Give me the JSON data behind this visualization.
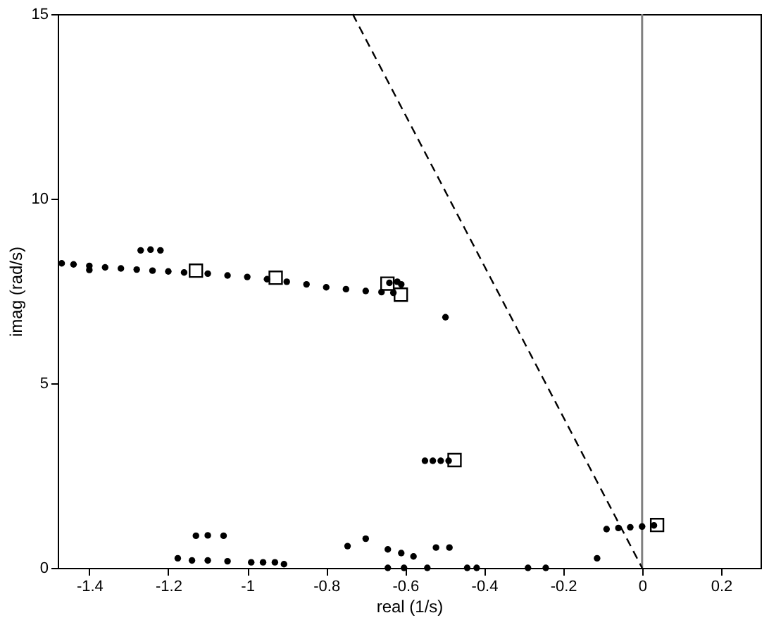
{
  "chart_data": {
    "type": "scatter",
    "xlabel": "real (1/s)",
    "ylabel": "imag (rad/s)",
    "xlim": [
      -1.48,
      0.3
    ],
    "ylim": [
      0,
      15
    ],
    "xticks": [
      -1.4,
      -1.2,
      -1,
      -0.8,
      -0.6,
      -0.4,
      -0.2,
      0,
      0.2
    ],
    "yticks": [
      0,
      5,
      10,
      15
    ],
    "grid": false,
    "ref_lines": [
      {
        "axis": "x",
        "value": 0,
        "color": "#808080"
      }
    ],
    "series": [
      {
        "marker": "circle",
        "color": "#000000",
        "x": [
          -1.47,
          -1.44,
          -1.4,
          -1.36,
          -1.32,
          -1.28,
          -1.24,
          -1.2,
          -1.16,
          -1.1,
          -1.05,
          -1.0,
          -0.95,
          -0.9,
          -0.85,
          -0.8,
          -0.75,
          -0.7,
          -0.66,
          -0.63,
          -1.4,
          -1.27,
          -1.245,
          -1.22,
          -0.64,
          -0.62,
          -0.61,
          -0.498,
          -0.55,
          -0.53,
          -0.51,
          -0.49,
          -0.09,
          -0.06,
          -0.03,
          0.0,
          0.03,
          -0.114,
          -0.244,
          -0.289,
          -0.419,
          -0.443,
          -0.544,
          -0.603,
          -0.644,
          -0.907,
          -0.93,
          -0.96,
          -0.99,
          -1.05,
          -1.1,
          -1.14,
          -1.176,
          -1.13,
          -1.1,
          -1.06,
          -0.746,
          -0.7,
          -0.644,
          -0.61,
          -0.579,
          -0.522,
          -0.488
        ],
        "values": [
          8.25,
          8.22,
          8.18,
          8.14,
          8.11,
          8.08,
          8.05,
          8.03,
          8.0,
          7.97,
          7.92,
          7.88,
          7.82,
          7.75,
          7.68,
          7.6,
          7.55,
          7.5,
          7.47,
          7.45,
          8.07,
          8.6,
          8.62,
          8.6,
          7.72,
          7.75,
          7.68,
          6.79,
          2.9,
          2.9,
          2.9,
          2.9,
          1.05,
          1.08,
          1.1,
          1.12,
          1.15,
          0.26,
          0.0,
          0.0,
          0.0,
          0.0,
          0.0,
          0.0,
          0.0,
          0.1,
          0.15,
          0.15,
          0.15,
          0.18,
          0.2,
          0.2,
          0.26,
          0.87,
          0.88,
          0.87,
          0.59,
          0.79,
          0.5,
          0.4,
          0.31,
          0.55,
          0.55
        ]
      },
      {
        "marker": "square",
        "color": "#000000",
        "x": [
          -1.13,
          -0.928,
          -0.645,
          -0.611,
          -0.475,
          0.038
        ],
        "values": [
          8.05,
          7.86,
          7.7,
          7.4,
          2.92,
          1.16
        ]
      },
      {
        "type": "line",
        "line_style": "dashed",
        "color": "#000000",
        "x": [
          -0.733,
          0
        ],
        "values": [
          15,
          0
        ]
      }
    ]
  }
}
